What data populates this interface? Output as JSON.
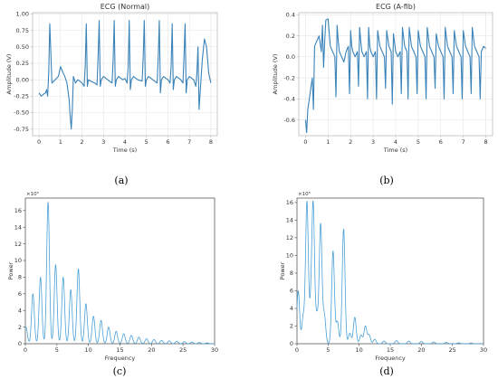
{
  "figure": {
    "panel_labels": [
      "(a)",
      "(b)",
      "(c)",
      "(d)"
    ]
  },
  "chart_data": [
    {
      "id": "a",
      "type": "line",
      "title": "ECG (Normal)",
      "xlabel": "Time (s)",
      "ylabel": "Amplitude (V)",
      "xlim": [
        -0.3,
        8.3
      ],
      "ylim": [
        -0.85,
        1.02
      ],
      "xticks": [
        0,
        1,
        2,
        3,
        4,
        5,
        6,
        7,
        8
      ],
      "yticks": [
        -0.75,
        -0.5,
        -0.25,
        0.0,
        0.25,
        0.5,
        0.75,
        1.0
      ],
      "ytick_labels": [
        "-0.75",
        "-0.50",
        "-0.25",
        "0.00",
        "0.25",
        "0.50",
        "0.75",
        "1.00"
      ],
      "grid": true,
      "color": "#3a83b9",
      "series": [
        {
          "x": [
            0.0,
            0.1,
            0.2,
            0.3,
            0.35,
            0.4,
            0.45,
            0.5,
            0.6,
            0.75,
            0.9,
            1.0,
            1.1,
            1.2,
            1.3,
            1.4,
            1.45,
            1.5,
            1.55,
            1.6,
            1.7,
            1.8,
            1.9,
            2.0,
            2.1,
            2.15,
            2.2,
            2.25,
            2.3,
            2.4,
            2.6,
            2.7,
            2.75,
            2.8,
            2.85,
            2.9,
            3.0,
            3.2,
            3.4,
            3.45,
            3.5,
            3.55,
            3.6,
            3.7,
            3.9,
            4.0,
            4.1,
            4.15,
            4.2,
            4.25,
            4.3,
            4.4,
            4.6,
            4.8,
            4.85,
            4.9,
            4.95,
            5.0,
            5.1,
            5.3,
            5.5,
            5.55,
            5.6,
            5.65,
            5.7,
            5.8,
            6.0,
            6.1,
            6.15,
            6.2,
            6.25,
            6.3,
            6.4,
            6.6,
            6.7,
            6.75,
            6.8,
            6.85,
            6.9,
            7.0,
            7.2,
            7.3,
            7.35,
            7.4,
            7.45,
            7.5,
            7.6,
            7.7,
            7.8,
            7.9,
            8.0
          ],
          "y": [
            -0.2,
            -0.25,
            -0.22,
            -0.2,
            -0.15,
            -0.25,
            0.1,
            0.85,
            -0.05,
            0.0,
            0.05,
            0.2,
            0.12,
            0.05,
            -0.05,
            -0.3,
            -0.55,
            -0.75,
            -0.45,
            0.05,
            -0.05,
            0.0,
            -0.02,
            -0.05,
            -0.1,
            0.2,
            0.85,
            -0.1,
            0.0,
            -0.02,
            -0.05,
            -0.08,
            0.35,
            0.9,
            -0.1,
            0.0,
            0.05,
            0.0,
            -0.05,
            0.3,
            0.9,
            -0.1,
            0.0,
            0.05,
            0.0,
            0.02,
            -0.05,
            0.2,
            0.9,
            -0.15,
            0.0,
            0.05,
            0.0,
            -0.02,
            0.35,
            0.9,
            -0.1,
            0.0,
            0.05,
            0.0,
            -0.05,
            0.35,
            0.9,
            -0.2,
            0.0,
            0.05,
            0.0,
            -0.05,
            0.2,
            0.85,
            -0.15,
            0.0,
            0.05,
            0.0,
            -0.05,
            0.35,
            0.85,
            -0.2,
            0.0,
            0.05,
            0.0,
            -0.1,
            0.1,
            0.5,
            -0.45,
            -0.2,
            0.3,
            0.62,
            0.5,
            0.1,
            -0.05
          ]
        }
      ]
    },
    {
      "id": "b",
      "type": "line",
      "title": "ECG (A-fib)",
      "xlabel": "Time (s)",
      "ylabel": "Amplitude (V)",
      "xlim": [
        -0.3,
        8.3
      ],
      "ylim": [
        -0.75,
        0.42
      ],
      "xticks": [
        0,
        1,
        2,
        3,
        4,
        5,
        6,
        7,
        8
      ],
      "yticks": [
        -0.6,
        -0.4,
        -0.2,
        0.0,
        0.2,
        0.4
      ],
      "ytick_labels": [
        "-0.6",
        "-0.4",
        "-0.2",
        "0.0",
        "0.2",
        "0.4"
      ],
      "grid": true,
      "color": "#3a83b9",
      "series": [
        {
          "x": [
            0.0,
            0.05,
            0.1,
            0.2,
            0.3,
            0.35,
            0.4,
            0.5,
            0.6,
            0.7,
            0.75,
            0.8,
            0.85,
            0.9,
            1.0,
            1.1,
            1.2,
            1.3,
            1.35,
            1.4,
            1.45,
            1.5,
            1.6,
            1.7,
            1.8,
            1.9,
            1.95,
            2.0,
            2.05,
            2.1,
            2.2,
            2.3,
            2.35,
            2.4,
            2.45,
            2.5,
            2.6,
            2.7,
            2.75,
            2.8,
            2.85,
            2.9,
            3.0,
            3.1,
            3.15,
            3.2,
            3.3,
            3.4,
            3.5,
            3.55,
            3.6,
            3.7,
            3.8,
            3.85,
            3.9,
            4.0,
            4.1,
            4.2,
            4.25,
            4.3,
            4.4,
            4.5,
            4.55,
            4.6,
            4.7,
            4.8,
            4.9,
            4.95,
            5.0,
            5.1,
            5.2,
            5.3,
            5.35,
            5.4,
            5.5,
            5.6,
            5.7,
            5.75,
            5.8,
            5.9,
            6.0,
            6.1,
            6.15,
            6.2,
            6.3,
            6.4,
            6.5,
            6.55,
            6.6,
            6.7,
            6.8,
            6.9,
            6.95,
            7.0,
            7.1,
            7.2,
            7.3,
            7.35,
            7.4,
            7.5,
            7.6,
            7.7,
            7.75,
            7.8,
            7.9,
            8.0
          ],
          "y": [
            -0.6,
            -0.72,
            -0.5,
            -0.35,
            -0.2,
            -0.5,
            0.1,
            0.15,
            0.2,
            0.05,
            0.3,
            -0.1,
            0.15,
            0.35,
            0.36,
            0.1,
            0.05,
            0.0,
            -0.38,
            0.3,
            0.15,
            0.05,
            0.0,
            -0.05,
            0.05,
            0.1,
            -0.35,
            0.25,
            0.1,
            0.05,
            0.0,
            0.05,
            -0.28,
            0.28,
            0.15,
            0.05,
            0.0,
            0.05,
            -0.4,
            0.28,
            0.1,
            0.05,
            0.0,
            0.05,
            -0.4,
            0.25,
            0.1,
            0.05,
            0.0,
            -0.3,
            0.25,
            0.1,
            0.05,
            -0.45,
            0.22,
            0.05,
            0.0,
            0.05,
            -0.35,
            0.28,
            0.1,
            0.05,
            -0.4,
            0.28,
            0.1,
            0.05,
            0.0,
            -0.35,
            0.25,
            0.1,
            0.05,
            0.0,
            -0.4,
            0.28,
            0.1,
            0.05,
            0.0,
            -0.3,
            0.22,
            0.1,
            0.05,
            0.0,
            -0.4,
            0.28,
            0.1,
            0.05,
            0.0,
            -0.35,
            0.25,
            0.1,
            0.05,
            0.0,
            -0.4,
            0.25,
            0.1,
            0.05,
            0.0,
            -0.35,
            0.28,
            0.1,
            0.05,
            0.0,
            -0.4,
            0.05,
            0.1,
            0.08
          ]
        }
      ]
    },
    {
      "id": "c",
      "type": "line",
      "xlabel": "Frequency",
      "ylabel": "Power",
      "xlim": [
        0,
        30
      ],
      "ylim": [
        0,
        17.5
      ],
      "xticks": [
        0,
        5,
        10,
        15,
        20,
        25,
        30
      ],
      "yticks": [
        0,
        2,
        4,
        6,
        8,
        10,
        12,
        14,
        16
      ],
      "y_multiplier": "×10⁵",
      "grid": false,
      "color": "#4aa0d8",
      "peaks": [
        {
          "x": 0.1,
          "y": 2.0
        },
        {
          "x": 1.2,
          "y": 6.0
        },
        {
          "x": 2.4,
          "y": 8.0
        },
        {
          "x": 3.6,
          "y": 17.0
        },
        {
          "x": 4.8,
          "y": 9.5
        },
        {
          "x": 6.0,
          "y": 8.0
        },
        {
          "x": 7.2,
          "y": 6.5
        },
        {
          "x": 8.4,
          "y": 9.0
        },
        {
          "x": 9.6,
          "y": 4.8
        },
        {
          "x": 10.8,
          "y": 3.3
        },
        {
          "x": 12.0,
          "y": 2.8
        },
        {
          "x": 13.2,
          "y": 2.0
        },
        {
          "x": 14.4,
          "y": 1.5
        },
        {
          "x": 15.6,
          "y": 1.2
        },
        {
          "x": 16.8,
          "y": 1.0
        },
        {
          "x": 18.0,
          "y": 0.8
        },
        {
          "x": 19.2,
          "y": 0.6
        },
        {
          "x": 20.4,
          "y": 0.5
        },
        {
          "x": 21.6,
          "y": 0.4
        },
        {
          "x": 22.8,
          "y": 0.35
        },
        {
          "x": 24.0,
          "y": 0.3
        },
        {
          "x": 25.2,
          "y": 0.25
        },
        {
          "x": 26.4,
          "y": 0.2
        },
        {
          "x": 27.6,
          "y": 0.15
        },
        {
          "x": 28.8,
          "y": 0.1
        }
      ]
    },
    {
      "id": "d",
      "type": "line",
      "xlabel": "Frequency",
      "ylabel": "Power",
      "xlim": [
        0,
        30
      ],
      "ylim": [
        0,
        16.5
      ],
      "xticks": [
        0,
        5,
        10,
        15,
        20,
        25,
        30
      ],
      "yticks": [
        0,
        2,
        4,
        6,
        8,
        10,
        12,
        14,
        16
      ],
      "y_multiplier": "×10⁵",
      "grid": false,
      "color": "#4aa0d8",
      "peaks": [
        {
          "x": 0.2,
          "y": 6.0
        },
        {
          "x": 1.0,
          "y": 3.0
        },
        {
          "x": 1.6,
          "y": 16.0
        },
        {
          "x": 2.2,
          "y": 3.2
        },
        {
          "x": 2.6,
          "y": 15.5
        },
        {
          "x": 3.2,
          "y": 3.0
        },
        {
          "x": 3.8,
          "y": 13.5
        },
        {
          "x": 4.4,
          "y": 3.2
        },
        {
          "x": 5.8,
          "y": 10.5
        },
        {
          "x": 6.5,
          "y": 2.5
        },
        {
          "x": 7.5,
          "y": 13.0
        },
        {
          "x": 8.5,
          "y": 1.2
        },
        {
          "x": 9.3,
          "y": 3.0
        },
        {
          "x": 10.3,
          "y": 1.0
        },
        {
          "x": 11.0,
          "y": 2.0
        },
        {
          "x": 11.6,
          "y": 1.0
        },
        {
          "x": 12.5,
          "y": 0.5
        },
        {
          "x": 14.0,
          "y": 0.3
        },
        {
          "x": 16.0,
          "y": 0.35
        },
        {
          "x": 18.0,
          "y": 0.3
        },
        {
          "x": 20.0,
          "y": 0.25
        },
        {
          "x": 22.0,
          "y": 0.2
        },
        {
          "x": 24.0,
          "y": 0.15
        },
        {
          "x": 26.0,
          "y": 0.1
        },
        {
          "x": 28.0,
          "y": 0.08
        }
      ]
    }
  ]
}
